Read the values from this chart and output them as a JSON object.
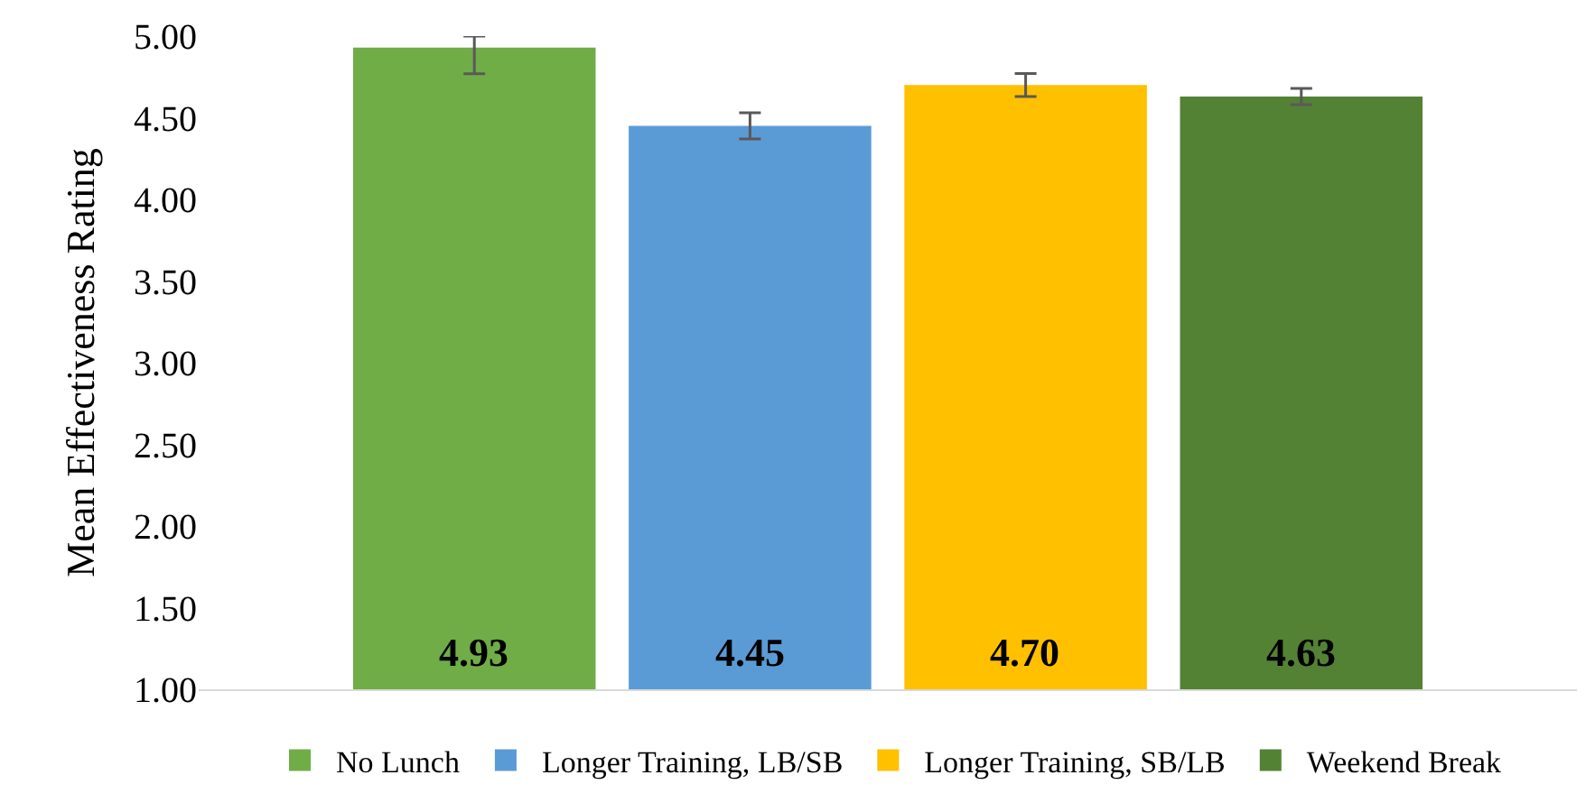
{
  "chart_data": {
    "type": "bar",
    "ylabel": "Mean Effectiveness Rating",
    "categories": [
      null
    ],
    "series": [
      {
        "name": "No Lunch",
        "color": "#70ad47",
        "values": [
          4.93
        ],
        "errors": [
          [
            4.77,
            5.0
          ]
        ],
        "value_labels": [
          "4.93"
        ]
      },
      {
        "name": "Longer Training, LB/SB",
        "color": "#5b9bd5",
        "values": [
          4.45
        ],
        "errors": [
          0.08
        ],
        "value_labels": [
          "4.45"
        ]
      },
      {
        "name": "Longer Training, SB/LB",
        "color": "#ffc000",
        "values": [
          4.7
        ],
        "errors": [
          0.07
        ],
        "value_labels": [
          "4.70"
        ]
      },
      {
        "name": "Weekend Break",
        "color": "#548235",
        "values": [
          4.63
        ],
        "errors": [
          0.05
        ],
        "value_labels": [
          "4.63"
        ]
      }
    ],
    "ylim": [
      1.0,
      5.0
    ],
    "yticks": [
      {
        "value": 1.0,
        "label": "1.00"
      },
      {
        "value": 1.5,
        "label": "1.50"
      },
      {
        "value": 2.0,
        "label": "2.00"
      },
      {
        "value": 2.5,
        "label": "2.50"
      },
      {
        "value": 3.0,
        "label": "3.00"
      },
      {
        "value": 3.5,
        "label": "3.50"
      },
      {
        "value": 4.0,
        "label": "4.00"
      },
      {
        "value": 4.5,
        "label": "4.50"
      },
      {
        "value": 5.0,
        "label": "5.00"
      }
    ],
    "legend": "bottom"
  }
}
